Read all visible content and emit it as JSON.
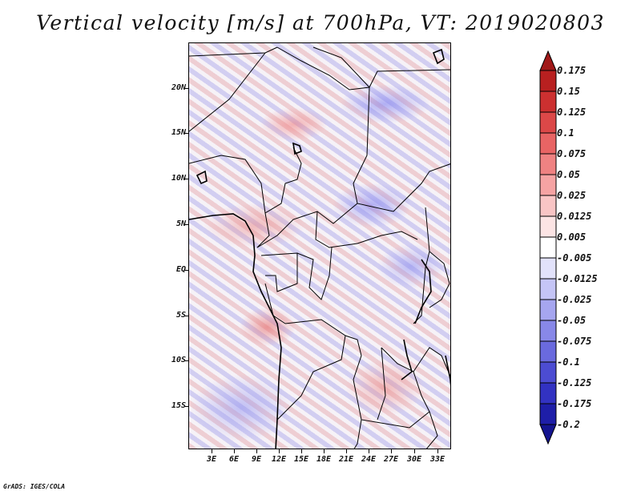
{
  "title": "Vertical velocity [m/s] at 700hPa, VT: 2019020803",
  "map": {
    "variable": "Vertical velocity",
    "units": "m/s",
    "level": "700hPa",
    "valid_time": "2019020803",
    "lat_labels": [
      "20N",
      "15N",
      "10N",
      "5N",
      "EQ",
      "5S",
      "10S",
      "15S"
    ],
    "lon_labels": [
      "3E",
      "6E",
      "9E",
      "12E",
      "15E",
      "18E",
      "21E",
      "24E",
      "27E",
      "30E",
      "33E"
    ]
  },
  "colorbar": {
    "labels": [
      "0.175",
      "0.15",
      "0.125",
      "0.1",
      "0.075",
      "0.05",
      "0.025",
      "0.0125",
      "0.005",
      "-0.005",
      "-0.0125",
      "-0.025",
      "-0.05",
      "-0.075",
      "-0.1",
      "-0.125",
      "-0.175",
      "-0.2"
    ],
    "colors": [
      "#a01818",
      "#b82020",
      "#cc3030",
      "#dc4848",
      "#e86464",
      "#ef8282",
      "#f5a3a3",
      "#f9c5c5",
      "#fce4e4",
      "#ffffff",
      "#e2e2fb",
      "#c5c5f6",
      "#a6a6f0",
      "#8888e8",
      "#6a6ade",
      "#4c4cd2",
      "#3232c2",
      "#1e1ea8",
      "#141490"
    ]
  },
  "footer": "GrADS: IGES/COLA"
}
